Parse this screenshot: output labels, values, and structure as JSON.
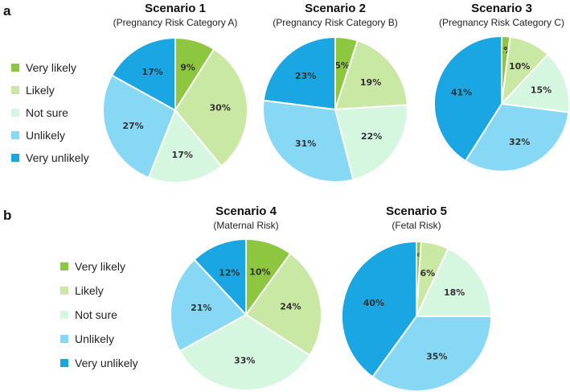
{
  "panels": [
    {
      "letter": "a"
    },
    {
      "letter": "b"
    }
  ],
  "legend": {
    "labels": [
      "Very likely",
      "Likely",
      "Not sure",
      "Unlikely",
      "Very unlikely"
    ],
    "colors": [
      "#8dc63f",
      "#c9e8a4",
      "#d5f7e0",
      "#87d8f5",
      "#1aa6e2"
    ]
  },
  "chart_data": [
    {
      "type": "pie",
      "title": "Scenario 1",
      "subtitle": "(Pregnancy Risk Category A)",
      "categories": [
        "Very likely",
        "Likely",
        "Not sure",
        "Unlikely",
        "Very unlikely"
      ],
      "values": [
        9,
        30,
        17,
        27,
        17
      ],
      "labels": [
        "9%",
        "30%",
        "17%",
        "27%",
        "17%"
      ]
    },
    {
      "type": "pie",
      "title": "Scenario 2",
      "subtitle": "(Pregnancy Risk Category B)",
      "categories": [
        "Very likely",
        "Likely",
        "Not sure",
        "Unlikely",
        "Very unlikely"
      ],
      "values": [
        5,
        19,
        22,
        31,
        23
      ],
      "labels": [
        "5%",
        "19%",
        "22%",
        "31%",
        "23%"
      ]
    },
    {
      "type": "pie",
      "title": "Scenario 3",
      "subtitle": "(Pregnancy Risk Category C)",
      "categories": [
        "Very likely",
        "Likely",
        "Not sure",
        "Unlikely",
        "Very unlikely"
      ],
      "values": [
        2,
        10,
        15,
        32,
        41
      ],
      "labels": [
        "2%",
        "10%",
        "15%",
        "32%",
        "41%"
      ]
    },
    {
      "type": "pie",
      "title": "Scenario 4",
      "subtitle": "(Maternal Risk)",
      "categories": [
        "Very likely",
        "Likely",
        "Not sure",
        "Unlikely",
        "Very unlikely"
      ],
      "values": [
        10,
        24,
        33,
        21,
        12
      ],
      "labels": [
        "10%",
        "24%",
        "33%",
        "21%",
        "12%"
      ]
    },
    {
      "type": "pie",
      "title": "Scenario 5",
      "subtitle": "(Fetal Risk)",
      "categories": [
        "Very likely",
        "Likely",
        "Not sure",
        "Unlikely",
        "Very unlikely"
      ],
      "values": [
        1,
        6,
        18,
        35,
        40
      ],
      "labels": [
        "1%",
        "6%",
        "18%",
        "35%",
        "40%"
      ]
    }
  ]
}
